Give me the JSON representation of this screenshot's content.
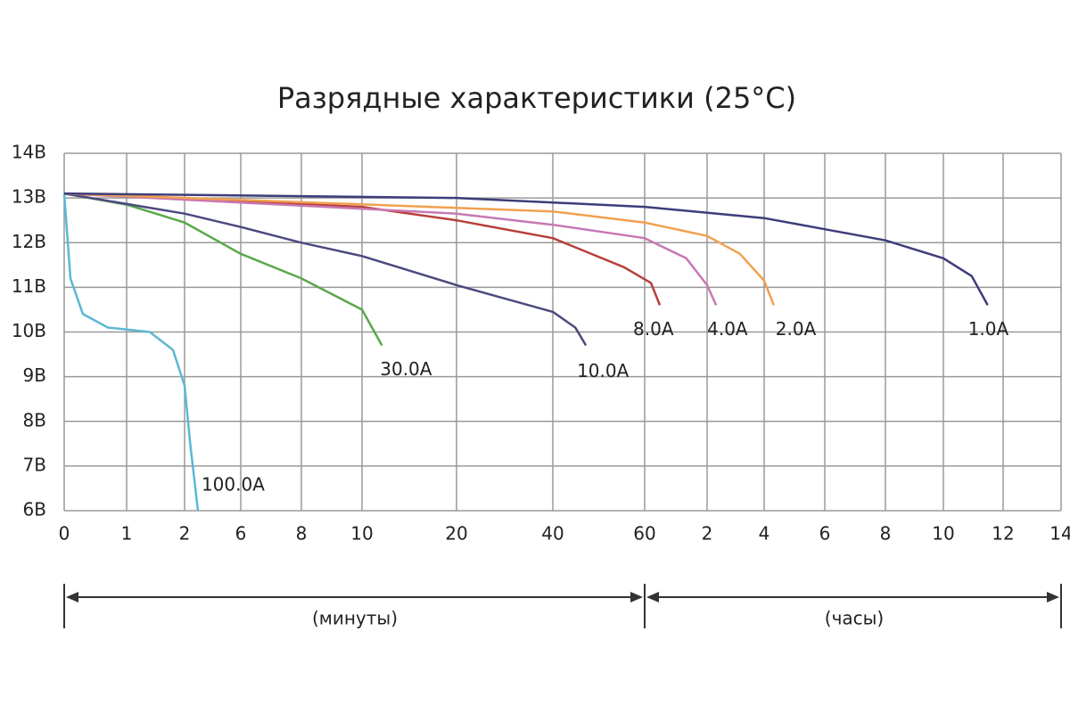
{
  "chart_data": {
    "type": "line",
    "title": "Разрядные характеристики (25°C)",
    "xlim": [
      0,
      840
    ],
    "xticks": [
      0,
      1,
      2,
      6,
      8,
      10,
      20,
      40,
      60,
      {
        "value": 120,
        "label": "2"
      },
      {
        "value": 240,
        "label": "4"
      },
      {
        "value": 360,
        "label": "6"
      },
      {
        "value": 480,
        "label": "8"
      },
      {
        "value": 600,
        "label": "10"
      },
      {
        "value": 720,
        "label": "12"
      },
      {
        "value": 840,
        "label": "14"
      }
    ],
    "ylim": [
      6,
      14
    ],
    "yticks": [
      {
        "value": 6,
        "label": "6В"
      },
      {
        "value": 7,
        "label": "7В"
      },
      {
        "value": 8,
        "label": "8В"
      },
      {
        "value": 9,
        "label": "9В"
      },
      {
        "value": 10,
        "label": "10В"
      },
      {
        "value": 11,
        "label": "11В"
      },
      {
        "value": 12,
        "label": "12В"
      },
      {
        "value": 13,
        "label": "13В"
      },
      {
        "value": 14,
        "label": "14В"
      }
    ],
    "grid": true,
    "x_annotations": [
      "(минуты)",
      "(часы)"
    ],
    "series": [
      {
        "name": "100.0A",
        "color": "#5bb8d4",
        "x": [
          0,
          0.1,
          0.3,
          0.7,
          1.4,
          1.8,
          2.0,
          2.4,
          2.95
        ],
        "values": [
          13.1,
          11.2,
          10.4,
          10.1,
          10.0,
          9.6,
          8.8,
          7.5,
          6.0
        ]
      },
      {
        "name": "30.0A",
        "color": "#5aa84a",
        "x": [
          0,
          1,
          2,
          6,
          8,
          10,
          12.1
        ],
        "values": [
          13.1,
          12.85,
          12.45,
          11.75,
          11.2,
          10.5,
          9.7
        ]
      },
      {
        "name": "10.0A",
        "color": "#4b4a80",
        "x": [
          0,
          2,
          6,
          8,
          10,
          20,
          40,
          44.9,
          47.2
        ],
        "values": [
          13.1,
          12.65,
          12.35,
          12.0,
          11.7,
          11.05,
          10.45,
          10.1,
          9.7
        ]
      },
      {
        "name": "8.0A",
        "color": "#b8403a",
        "x": [
          0,
          10,
          20,
          40,
          55.5,
          66,
          74.6
        ],
        "values": [
          13.1,
          12.8,
          12.5,
          12.1,
          11.45,
          11.1,
          10.6
        ]
      },
      {
        "name": "4.0A",
        "color": "#c878b4",
        "x": [
          0,
          20,
          40,
          60,
          100,
          120,
          139
        ],
        "values": [
          13.1,
          12.65,
          12.4,
          12.1,
          11.65,
          11.05,
          10.6
        ]
      },
      {
        "name": "2.0A",
        "color": "#f0a050",
        "x": [
          0,
          40,
          60,
          120,
          189,
          240,
          259
        ],
        "values": [
          13.1,
          12.7,
          12.45,
          12.15,
          11.75,
          11.15,
          10.6
        ]
      },
      {
        "name": "1.0A",
        "color": "#3d3d7a",
        "x": [
          0,
          20,
          60,
          240,
          360,
          480,
          600,
          657,
          689
        ],
        "values": [
          13.1,
          13.0,
          12.8,
          12.55,
          12.3,
          12.05,
          11.65,
          11.25,
          10.6
        ]
      }
    ]
  }
}
